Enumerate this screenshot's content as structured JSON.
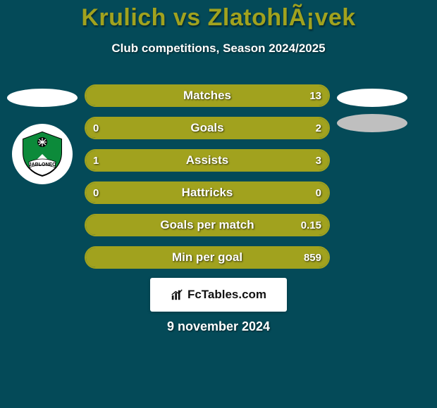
{
  "background_color": "#044a58",
  "title": "Krulich vs ZlatohlÃ¡vek",
  "title_color": "#a1a21e",
  "subtitle": "Club competitions, Season 2024/2025",
  "accent_color": "#a1a21e",
  "badge_text": "FcTables.com",
  "footer_date": "9 november 2024",
  "left_ellipse_color": "#ffffff",
  "right_ellipse_top_color": "#ffffff",
  "right_ellipse_bottom_color": "#bfbfbf",
  "club_circle_color": "#ffffff",
  "club_badge_green": "#0c8a3a",
  "club_badge_black": "#000000",
  "stats": [
    {
      "label": "Matches",
      "left_display": "",
      "right_display": "13",
      "left_pct": 50,
      "right_pct": 50
    },
    {
      "label": "Goals",
      "left_display": "0",
      "right_display": "2",
      "left_pct": 18,
      "right_pct": 82
    },
    {
      "label": "Assists",
      "left_display": "1",
      "right_display": "3",
      "left_pct": 25,
      "right_pct": 75
    },
    {
      "label": "Hattricks",
      "left_display": "0",
      "right_display": "0",
      "left_pct": 8,
      "right_pct": 92
    },
    {
      "label": "Goals per match",
      "left_display": "",
      "right_display": "0.15",
      "left_pct": 35,
      "right_pct": 65
    },
    {
      "label": "Min per goal",
      "left_display": "",
      "right_display": "859",
      "left_pct": 32,
      "right_pct": 68
    }
  ]
}
